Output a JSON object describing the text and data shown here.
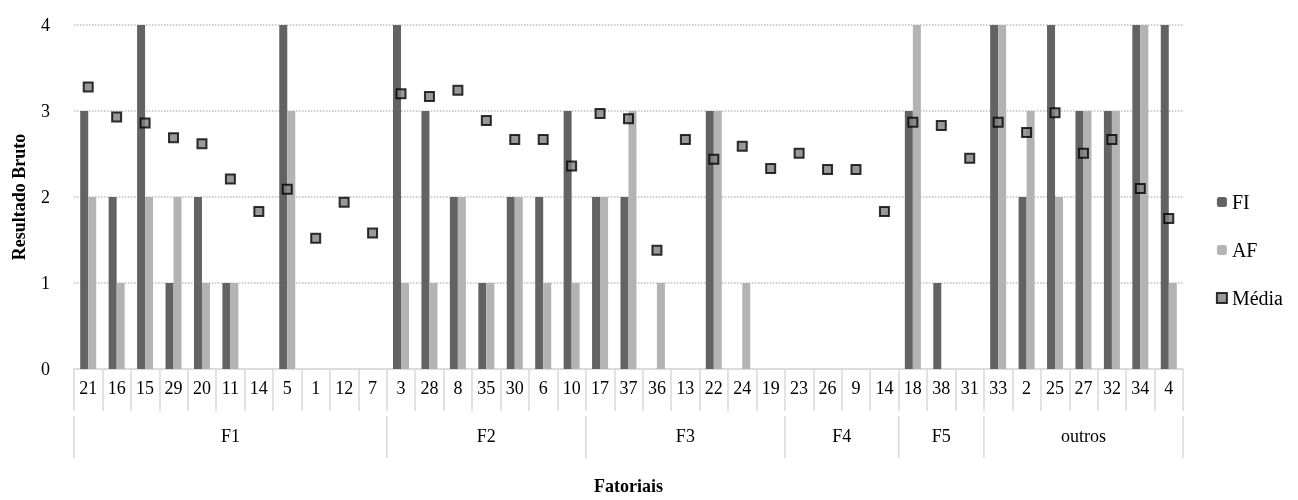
{
  "chart_data": {
    "type": "bar",
    "xlabel": "Fatoriais",
    "ylabel": "Resultado Bruto",
    "categories": [
      "21",
      "16",
      "15",
      "29",
      "20",
      "11",
      "14",
      "5",
      "1",
      "12",
      "7",
      "3",
      "28",
      "8",
      "35",
      "30",
      "6",
      "10",
      "17",
      "37",
      "36",
      "13",
      "22",
      "24",
      "19",
      "23",
      "26",
      "9",
      "14",
      "18",
      "38",
      "31",
      "33",
      "2",
      "25",
      "27",
      "32",
      "34",
      "4"
    ],
    "series": [
      {
        "name": "FI",
        "color": "#636363",
        "values": [
          3,
          2,
          4,
          1,
          2,
          1,
          0,
          4,
          0,
          0,
          0,
          4,
          3,
          2,
          1,
          2,
          2,
          3,
          2,
          2,
          0,
          0,
          3,
          0,
          0,
          0,
          0,
          0,
          0,
          3,
          1,
          0,
          4,
          2,
          4,
          3,
          3,
          4,
          4
        ]
      },
      {
        "name": "AF",
        "color": "#b3b3b3",
        "values": [
          2,
          1,
          2,
          2,
          1,
          1,
          0,
          3,
          0,
          0,
          0,
          1,
          1,
          2,
          1,
          2,
          1,
          1,
          2,
          3,
          1,
          0,
          3,
          1,
          0,
          0,
          0,
          0,
          0,
          4,
          0,
          0,
          4,
          3,
          2,
          3,
          3,
          4,
          1
        ]
      },
      {
        "name": "Média",
        "type": "scatter",
        "marker": "square",
        "color": "#000000",
        "values": [
          3.28,
          2.93,
          2.86,
          2.69,
          2.62,
          2.21,
          1.83,
          2.09,
          1.52,
          1.94,
          1.58,
          3.2,
          3.17,
          3.24,
          2.89,
          2.67,
          2.67,
          2.36,
          2.97,
          2.91,
          1.38,
          2.67,
          2.44,
          2.59,
          2.33,
          2.51,
          2.32,
          2.32,
          1.83,
          2.87,
          2.83,
          2.45,
          2.87,
          2.75,
          2.98,
          2.51,
          2.67,
          2.1,
          1.75
        ]
      }
    ],
    "annotations": [
      "F1",
      "F2",
      "F3",
      "F4",
      "F5",
      "outros"
    ],
    "ylim": [
      0,
      4
    ],
    "yticks": [
      0,
      1,
      2,
      3,
      4
    ],
    "grid": "y",
    "legend": "right"
  }
}
